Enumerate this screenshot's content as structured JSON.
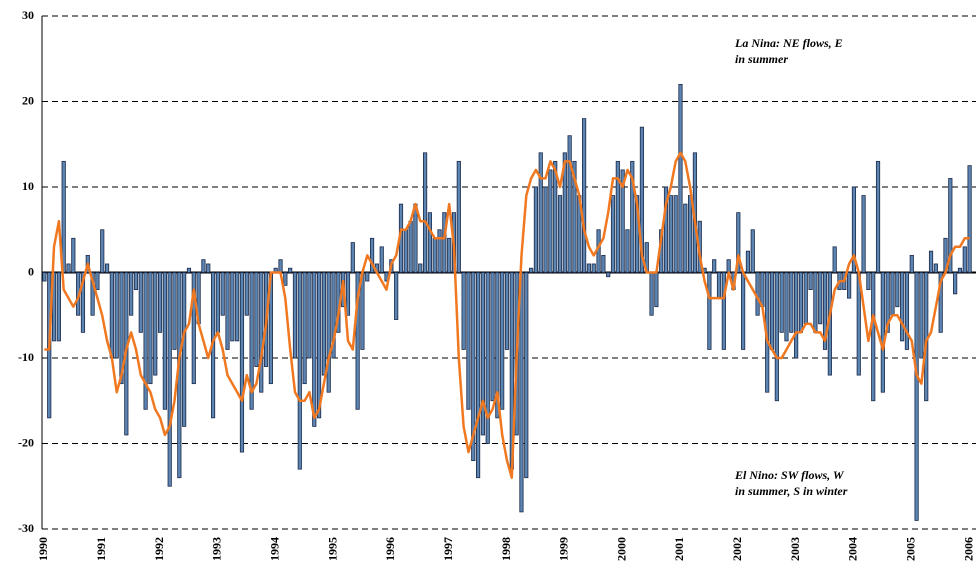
{
  "chart_data": {
    "type": "bar-line",
    "annotations": [
      {
        "lines": [
          "La Nina: NE flows, E",
          "in summer"
        ]
      },
      {
        "lines": [
          "El Nino: SW flows, W",
          "in summer, S in winter"
        ]
      }
    ],
    "categories": [
      "1990",
      null,
      null,
      null,
      null,
      null,
      null,
      null,
      null,
      null,
      null,
      null,
      "1991",
      null,
      null,
      null,
      null,
      null,
      null,
      null,
      null,
      null,
      null,
      null,
      "1992",
      null,
      null,
      null,
      null,
      null,
      null,
      null,
      null,
      null,
      null,
      null,
      "1993",
      null,
      null,
      null,
      null,
      null,
      null,
      null,
      null,
      null,
      null,
      null,
      "1994",
      null,
      null,
      null,
      null,
      null,
      null,
      null,
      null,
      null,
      null,
      null,
      "1995",
      null,
      null,
      null,
      null,
      null,
      null,
      null,
      null,
      null,
      null,
      null,
      "1996",
      null,
      null,
      null,
      null,
      null,
      null,
      null,
      null,
      null,
      null,
      null,
      "1997",
      null,
      null,
      null,
      null,
      null,
      null,
      null,
      null,
      null,
      null,
      null,
      "1998",
      null,
      null,
      null,
      null,
      null,
      null,
      null,
      null,
      null,
      null,
      null,
      "1999",
      null,
      null,
      null,
      null,
      null,
      null,
      null,
      null,
      null,
      null,
      null,
      "2000",
      null,
      null,
      null,
      null,
      null,
      null,
      null,
      null,
      null,
      null,
      null,
      "2001",
      null,
      null,
      null,
      null,
      null,
      null,
      null,
      null,
      null,
      null,
      null,
      "2002",
      null,
      null,
      null,
      null,
      null,
      null,
      null,
      null,
      null,
      null,
      null,
      "2003",
      null,
      null,
      null,
      null,
      null,
      null,
      null,
      null,
      null,
      null,
      null,
      "2004",
      null,
      null,
      null,
      null,
      null,
      null,
      null,
      null,
      null,
      null,
      null,
      "2005",
      null,
      null,
      null,
      null,
      null,
      null,
      null,
      null,
      null,
      null,
      null,
      "2006"
    ],
    "series": [
      {
        "kind": "bar",
        "color": "#5b84b1",
        "values": [
          -1,
          -17,
          -8,
          -8,
          13,
          1,
          4,
          -5,
          -7,
          2,
          -5,
          -2,
          5,
          1,
          -10,
          -10,
          -13,
          -19,
          -5,
          -2,
          -7,
          -16,
          -13,
          -12,
          -7,
          -16,
          -25,
          -9,
          -24,
          -18,
          0.5,
          -13,
          -6,
          1.5,
          1,
          -17,
          -7,
          -5,
          -9,
          -8,
          -8,
          -21,
          -5,
          -16,
          -11,
          -14,
          -11,
          -13,
          0.5,
          1.5,
          -1.5,
          0.5,
          -10,
          -23,
          -13,
          -10,
          -18,
          -17,
          -12,
          -14,
          -10,
          -7,
          -4,
          -5,
          3.5,
          -16,
          -9,
          -1,
          4,
          1,
          3,
          -1,
          1.5,
          -5.5,
          8,
          5,
          6,
          8,
          1,
          14,
          7,
          4,
          5,
          7,
          4,
          7,
          13,
          -9,
          -16,
          -22,
          -24,
          -19,
          -20,
          -15,
          -17,
          -16,
          -9,
          -23,
          -19,
          -28,
          -24,
          0.5,
          10,
          14,
          10,
          12,
          13,
          9,
          14,
          16,
          13,
          9,
          18,
          1,
          1,
          5,
          2,
          -0.5,
          9,
          13,
          12,
          5,
          13,
          9,
          17,
          3.5,
          -5,
          -4,
          5,
          10,
          9,
          9,
          22,
          8,
          9,
          14,
          6,
          0.5,
          -9,
          1.5,
          -3,
          -9,
          1.5,
          -2,
          7,
          -9,
          2.5,
          5,
          -5,
          -4,
          -14,
          -9,
          -15,
          -7,
          -8,
          -7,
          -10,
          -7,
          -6,
          -2,
          -7,
          -6,
          -9,
          -12,
          3,
          -2,
          -2,
          -3,
          10,
          -12,
          9,
          -2,
          -15,
          13,
          -14,
          -7,
          -5,
          -4,
          -8,
          -9,
          2,
          -29,
          -10,
          -15,
          2.5,
          1,
          -7,
          4,
          11,
          -2.5,
          0.5,
          3,
          12.5
        ]
      },
      {
        "kind": "line",
        "color": "#f07820",
        "values": [
          -9,
          -9,
          3,
          6,
          -2,
          -3,
          -4,
          -3,
          -1,
          1,
          -1,
          -3,
          -5,
          -8,
          -10,
          -14,
          -12,
          -9,
          -7,
          -9,
          -12,
          -13,
          -14,
          -16,
          -17,
          -19,
          -18,
          -15,
          -10,
          -7,
          -6,
          -2,
          -6,
          -8,
          -10,
          -8,
          -7,
          -9,
          -12,
          -13,
          -14,
          -15,
          -12,
          -14,
          -13,
          -10,
          -6,
          0,
          0,
          0,
          -3,
          -9,
          -14,
          -15,
          -15,
          -14,
          -17,
          -16,
          -13,
          -10,
          -8,
          -5,
          -1,
          -8,
          -9,
          -3,
          0,
          2,
          1,
          0,
          -1,
          -2,
          1,
          2,
          5,
          5,
          6,
          8,
          6,
          6,
          5,
          4,
          4,
          4,
          8,
          3,
          -10,
          -18,
          -21,
          -19,
          -17,
          -15,
          -17,
          -16,
          -14,
          -19,
          -22,
          -24,
          -10,
          2,
          9,
          11,
          12,
          11,
          11,
          13,
          12,
          10,
          13,
          13,
          11,
          9,
          5,
          3,
          2,
          3,
          4,
          7,
          11,
          11,
          10,
          12,
          11,
          8,
          2,
          0,
          0,
          0,
          4,
          8,
          10,
          13,
          14,
          13,
          10,
          6,
          2,
          -1,
          -3,
          -3,
          -3,
          -3,
          0,
          -2,
          2,
          0,
          -1,
          -2,
          -3,
          -4,
          -8,
          -9,
          -10,
          -10,
          -9,
          -8,
          -7,
          -7,
          -6,
          -6,
          -7,
          -7,
          -8,
          -5,
          -2,
          -1,
          -1,
          1,
          2,
          0,
          -4,
          -8,
          -5,
          -7,
          -9,
          -6,
          -5,
          -5,
          -6,
          -7,
          -8,
          -12,
          -13,
          -8,
          -7,
          -4,
          -1,
          0,
          2,
          3,
          3,
          4,
          4
        ]
      }
    ],
    "ylim": [
      -30,
      30
    ],
    "yticks": [
      -30,
      -20,
      -10,
      0,
      10,
      20,
      30
    ],
    "grid": true
  }
}
